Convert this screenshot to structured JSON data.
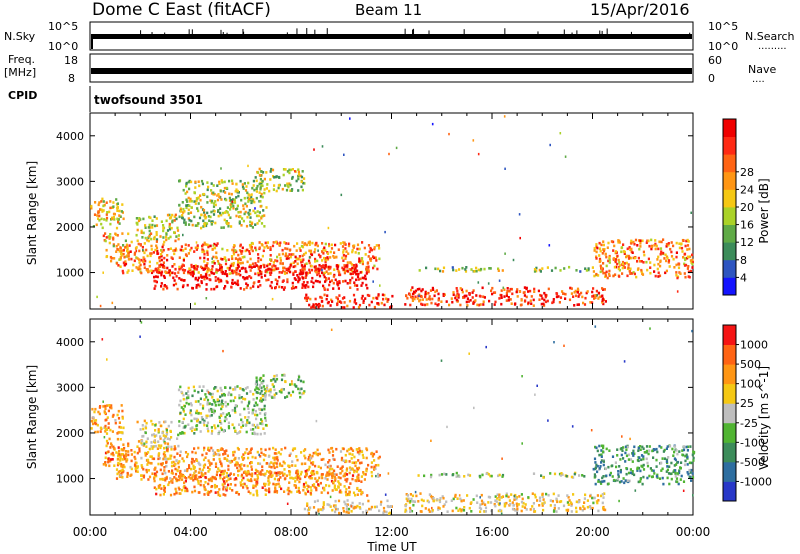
{
  "header": {
    "station": "Dome C East (fitACF)",
    "beam": "Beam 11",
    "date": "15/Apr/2016"
  },
  "nsky_panel": {
    "left_label": "N.Sky",
    "right_label": "N.Search",
    "right_dots": ".........",
    "left_ticks": [
      "10^5",
      "10^0"
    ],
    "right_ticks": [
      "10^5",
      "10^0"
    ]
  },
  "freq_panel": {
    "left_label_line1": "Freq.",
    "left_label_line2": "[MHz]",
    "right_label": "Nave",
    "right_dots": "....",
    "left_ticks": [
      "18",
      "8"
    ],
    "right_ticks": [
      "60",
      "0"
    ]
  },
  "cpid": {
    "label": "CPID",
    "value": "twofsound 3501"
  },
  "chart_data": [
    {
      "type": "heatmap",
      "name": "Power",
      "ylabel": "Slant Range [km]",
      "xlabel": "",
      "x_ticks": [
        "00:00",
        "04:00",
        "08:00",
        "12:00",
        "16:00",
        "20:00",
        "00:00"
      ],
      "xlim_hours": [
        0,
        24
      ],
      "y_ticks": [
        1000,
        2000,
        3000,
        4000
      ],
      "ylim": [
        200,
        4500
      ],
      "colorbar_label": "Power [dB]",
      "colorbar_ticks": [
        "4",
        "8",
        "12",
        "16",
        "20",
        "24",
        "28"
      ],
      "colorbar_colors": [
        "#1414ff",
        "#2e55c0",
        "#3c8c5a",
        "#5faa46",
        "#aad228",
        "#f5c814",
        "#ff9614",
        "#ff6414",
        "#ff2a14",
        "#f00000"
      ],
      "echo_regions": [
        {
          "t0": 0.0,
          "t1": 1.3,
          "r0": 2000,
          "r1": 2650,
          "level": 0.55
        },
        {
          "t0": 0.5,
          "t1": 1.5,
          "r0": 1250,
          "r1": 1900,
          "level": 0.6
        },
        {
          "t0": 1.8,
          "t1": 3.5,
          "r0": 1700,
          "r1": 2300,
          "level": 0.5
        },
        {
          "t0": 3.5,
          "t1": 7.0,
          "r0": 2000,
          "r1": 3050,
          "level": 0.45
        },
        {
          "t0": 6.5,
          "t1": 8.5,
          "r0": 2800,
          "r1": 3300,
          "level": 0.45
        },
        {
          "t0": 1.0,
          "t1": 11.5,
          "r0": 1000,
          "r1": 1700,
          "level": 0.7
        },
        {
          "t0": 2.5,
          "t1": 11.0,
          "r0": 650,
          "r1": 1200,
          "level": 0.95
        },
        {
          "t0": 8.5,
          "t1": 12.0,
          "r0": 250,
          "r1": 550,
          "level": 0.85
        },
        {
          "t0": 12.5,
          "t1": 20.5,
          "r0": 300,
          "r1": 700,
          "level": 0.85
        },
        {
          "t0": 13.0,
          "t1": 16.5,
          "r0": 1050,
          "r1": 1150,
          "level": 0.4
        },
        {
          "t0": 17.5,
          "t1": 20.0,
          "r0": 1050,
          "r1": 1150,
          "level": 0.4
        },
        {
          "t0": 20.0,
          "t1": 24.0,
          "r0": 900,
          "r1": 1750,
          "level": 0.7
        }
      ]
    },
    {
      "type": "heatmap",
      "name": "Velocity",
      "ylabel": "Slant Range [km]",
      "xlabel": "Time UT",
      "x_ticks": [
        "00:00",
        "04:00",
        "08:00",
        "12:00",
        "16:00",
        "20:00",
        "00:00"
      ],
      "xlim_hours": [
        0,
        24
      ],
      "y_ticks": [
        1000,
        2000,
        3000,
        4000
      ],
      "ylim": [
        200,
        4500
      ],
      "colorbar_label": "Velocity [m s^-1]",
      "colorbar_ticks": [
        "1000",
        "500",
        "100",
        "25",
        "-25",
        "-100",
        "-500",
        "-1000"
      ],
      "colorbar_colors": [
        "#2838c8",
        "#2e6ea0",
        "#3c8c5a",
        "#50b432",
        "#bebebe",
        "#f5c814",
        "#ff9614",
        "#ff6414",
        "#f51414"
      ],
      "echo_regions": [
        {
          "t0": 0.0,
          "t1": 1.3,
          "r0": 2000,
          "r1": 2650,
          "level": 0.7
        },
        {
          "t0": 0.5,
          "t1": 1.5,
          "r0": 1250,
          "r1": 1900,
          "level": 0.75
        },
        {
          "t0": 1.8,
          "t1": 3.5,
          "r0": 1700,
          "r1": 2300,
          "level": 0.55
        },
        {
          "t0": 3.5,
          "t1": 7.0,
          "r0": 2000,
          "r1": 3050,
          "level": 0.45
        },
        {
          "t0": 6.5,
          "t1": 8.5,
          "r0": 2800,
          "r1": 3300,
          "level": 0.45
        },
        {
          "t0": 1.0,
          "t1": 11.5,
          "r0": 1000,
          "r1": 1700,
          "level": 0.7
        },
        {
          "t0": 2.5,
          "t1": 11.0,
          "r0": 650,
          "r1": 1200,
          "level": 0.75
        },
        {
          "t0": 8.5,
          "t1": 12.0,
          "r0": 250,
          "r1": 550,
          "level": 0.6
        },
        {
          "t0": 12.5,
          "t1": 20.5,
          "r0": 300,
          "r1": 700,
          "level": 0.6
        },
        {
          "t0": 13.0,
          "t1": 16.5,
          "r0": 1050,
          "r1": 1150,
          "level": 0.45
        },
        {
          "t0": 17.5,
          "t1": 20.0,
          "r0": 1050,
          "r1": 1150,
          "level": 0.45
        },
        {
          "t0": 20.0,
          "t1": 24.0,
          "r0": 900,
          "r1": 1750,
          "level": 0.3
        }
      ]
    }
  ]
}
